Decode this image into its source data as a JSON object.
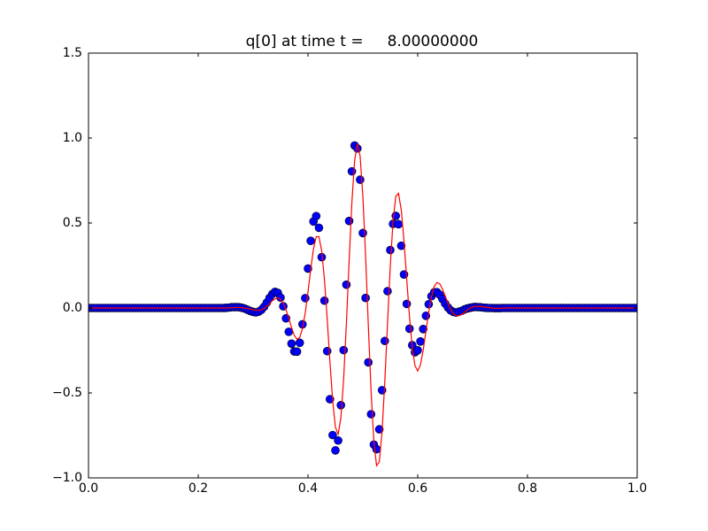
{
  "chart_data": {
    "type": "line",
    "title": "q[0] at time t =     8.00000000",
    "x": [
      0,
      0.005,
      0.01,
      0.015,
      0.02,
      0.025,
      0.03,
      0.035,
      0.04,
      0.045,
      0.05,
      0.055,
      0.06,
      0.065,
      0.07,
      0.075,
      0.08,
      0.085,
      0.09,
      0.095,
      0.1,
      0.105,
      0.11,
      0.115,
      0.12,
      0.125,
      0.13,
      0.135,
      0.14,
      0.145,
      0.15,
      0.155,
      0.16,
      0.165,
      0.17,
      0.175,
      0.18,
      0.185,
      0.19,
      0.195,
      0.2,
      0.205,
      0.21,
      0.215,
      0.22,
      0.225,
      0.23,
      0.235,
      0.24,
      0.245,
      0.25,
      0.255,
      0.26,
      0.265,
      0.27,
      0.275,
      0.28,
      0.285,
      0.29,
      0.295,
      0.3,
      0.305,
      0.31,
      0.315,
      0.32,
      0.325,
      0.33,
      0.335,
      0.34,
      0.345,
      0.35,
      0.355,
      0.36,
      0.365,
      0.37,
      0.375,
      0.38,
      0.385,
      0.39,
      0.395,
      0.4,
      0.405,
      0.41,
      0.415,
      0.42,
      0.425,
      0.43,
      0.435,
      0.44,
      0.445,
      0.45,
      0.455,
      0.46,
      0.465,
      0.47,
      0.475,
      0.48,
      0.485,
      0.49,
      0.495,
      0.5,
      0.505,
      0.51,
      0.515,
      0.52,
      0.525,
      0.53,
      0.535,
      0.54,
      0.545,
      0.55,
      0.555,
      0.56,
      0.565,
      0.57,
      0.575,
      0.58,
      0.585,
      0.59,
      0.595,
      0.6,
      0.605,
      0.61,
      0.615,
      0.62,
      0.625,
      0.63,
      0.635,
      0.64,
      0.645,
      0.65,
      0.655,
      0.66,
      0.665,
      0.67,
      0.675,
      0.68,
      0.685,
      0.69,
      0.695,
      0.7,
      0.705,
      0.71,
      0.715,
      0.72,
      0.725,
      0.73,
      0.735,
      0.74,
      0.745,
      0.75,
      0.755,
      0.76,
      0.765,
      0.77,
      0.775,
      0.78,
      0.785,
      0.79,
      0.795,
      0.8,
      0.805,
      0.81,
      0.815,
      0.82,
      0.825,
      0.83,
      0.835,
      0.84,
      0.845,
      0.85,
      0.855,
      0.86,
      0.865,
      0.87,
      0.875,
      0.88,
      0.885,
      0.89,
      0.895,
      0.9,
      0.905,
      0.91,
      0.915,
      0.92,
      0.925,
      0.93,
      0.935,
      0.94,
      0.945,
      0.95,
      0.955,
      0.96,
      0.965,
      0.97,
      0.975,
      0.98,
      0.985,
      0.99,
      0.995,
      1
    ],
    "series": [
      {
        "type": "scatter",
        "color": "#0000ff",
        "edgecolor": "#000000",
        "values": [
          0,
          0,
          0,
          0,
          0,
          0,
          0,
          0,
          0,
          0,
          0,
          0,
          0,
          0,
          0,
          0,
          0,
          0,
          0,
          0,
          0,
          0,
          0,
          0,
          0,
          0,
          0,
          0,
          0,
          0,
          0,
          0,
          0,
          0,
          0,
          0,
          0,
          0,
          0,
          0,
          0,
          0,
          0,
          0,
          0,
          0,
          0,
          0,
          0,
          0,
          0.001,
          0.002,
          0.004,
          0.005,
          0.005,
          0.004,
          0.001,
          -0.004,
          -0.011,
          -0.018,
          -0.023,
          -0.026,
          -0.022,
          -0.011,
          0.007,
          0.032,
          0.059,
          0.082,
          0.095,
          0.089,
          0.061,
          0.01,
          -0.061,
          -0.14,
          -0.21,
          -0.256,
          -0.257,
          -0.205,
          -0.096,
          0.058,
          0.232,
          0.395,
          0.509,
          0.541,
          0.472,
          0.299,
          0.043,
          -0.254,
          -0.537,
          -0.748,
          -0.838,
          -0.78,
          -0.572,
          -0.248,
          0.137,
          0.512,
          0.804,
          0.956,
          0.939,
          0.755,
          0.441,
          0.059,
          -0.32,
          -0.625,
          -0.804,
          -0.831,
          -0.714,
          -0.484,
          -0.194,
          0.099,
          0.341,
          0.495,
          0.542,
          0.493,
          0.366,
          0.197,
          0.024,
          -0.122,
          -0.219,
          -0.261,
          -0.249,
          -0.197,
          -0.124,
          -0.046,
          0.022,
          0.069,
          0.092,
          0.093,
          0.078,
          0.053,
          0.026,
          0.003,
          -0.014,
          -0.023,
          -0.027,
          -0.022,
          -0.017,
          -0.009,
          -0.003,
          0.001,
          0.004,
          0.006,
          0.005,
          0.004,
          0.002,
          0.001,
          0,
          0,
          -0.001,
          -0.001,
          -0.001,
          0,
          0,
          0,
          0,
          0,
          0,
          0,
          0,
          0,
          0,
          0,
          0,
          0,
          0,
          0,
          0,
          0,
          0,
          0,
          0,
          0,
          0,
          0,
          0,
          0,
          0,
          0,
          0,
          0,
          0,
          0,
          0,
          0,
          0,
          0,
          0,
          0,
          0,
          0,
          0,
          0,
          0,
          0,
          0,
          0,
          0,
          0,
          0,
          0,
          0
        ]
      },
      {
        "type": "line",
        "color": "#ff0000",
        "values": [
          0,
          0,
          0,
          0,
          0,
          0,
          0,
          0,
          0,
          0,
          0,
          0,
          0,
          0,
          0,
          0,
          0,
          0,
          0,
          0,
          0,
          0,
          0,
          0,
          0,
          0,
          0,
          0,
          0,
          0,
          0,
          0,
          0,
          0,
          0,
          0,
          0,
          0,
          0,
          0,
          0,
          0,
          0,
          0,
          0,
          0,
          0,
          0,
          0,
          0,
          0,
          0.001,
          0.002,
          0.002,
          0.003,
          0.003,
          0.002,
          -0.001,
          -0.003,
          -0.007,
          -0.011,
          -0.014,
          -0.014,
          -0.011,
          -0.003,
          0.01,
          0.026,
          0.042,
          0.054,
          0.06,
          0.052,
          0.028,
          -0.011,
          -0.061,
          -0.115,
          -0.161,
          -0.184,
          -0.173,
          -0.121,
          -0.029,
          0.095,
          0.228,
          0.347,
          0.419,
          0.42,
          0.336,
          0.168,
          -0.062,
          -0.316,
          -0.546,
          -0.702,
          -0.743,
          -0.646,
          -0.418,
          -0.091,
          0.278,
          0.62,
          0.867,
          0.966,
          0.895,
          0.66,
          0.306,
          -0.104,
          -0.49,
          -0.782,
          -0.928,
          -0.906,
          -0.728,
          -0.435,
          -0.088,
          0.247,
          0.508,
          0.656,
          0.675,
          0.577,
          0.393,
          0.168,
          -0.053,
          -0.23,
          -0.339,
          -0.371,
          -0.334,
          -0.248,
          -0.137,
          -0.025,
          0.066,
          0.126,
          0.15,
          0.143,
          0.112,
          0.071,
          0.028,
          -0.008,
          -0.033,
          -0.044,
          -0.045,
          -0.038,
          -0.026,
          -0.013,
          -0.002,
          0.006,
          0.009,
          0.01,
          0.009,
          0.006,
          0.004,
          0.002,
          0,
          -0.002,
          -0.002,
          -0.002,
          0,
          0,
          0,
          0,
          0,
          0,
          0,
          0,
          0,
          0,
          0,
          0,
          0,
          0,
          0,
          0,
          0,
          0,
          0,
          0,
          0,
          0,
          0,
          0,
          0,
          0,
          0,
          0,
          0,
          0,
          0,
          0,
          0,
          0,
          0,
          0,
          0,
          0,
          0,
          0,
          0,
          0,
          0,
          0,
          0,
          0,
          0,
          0,
          0,
          0
        ]
      }
    ],
    "xlim": [
      0,
      1
    ],
    "xticks": [
      {
        "value": 0,
        "label": "0.0"
      },
      0.2,
      0.4,
      0.6,
      0.8,
      {
        "value": 1,
        "label": "1.0"
      }
    ],
    "ylim": [
      -1,
      1.5
    ],
    "yticks": [
      {
        "value": -1,
        "label": "−1.0"
      },
      {
        "value": -0.5,
        "label": "−0.5"
      },
      {
        "value": 0,
        "label": "0.0"
      },
      0.5,
      {
        "value": 1,
        "label": "1.0"
      },
      1.5
    ],
    "grid": false
  }
}
